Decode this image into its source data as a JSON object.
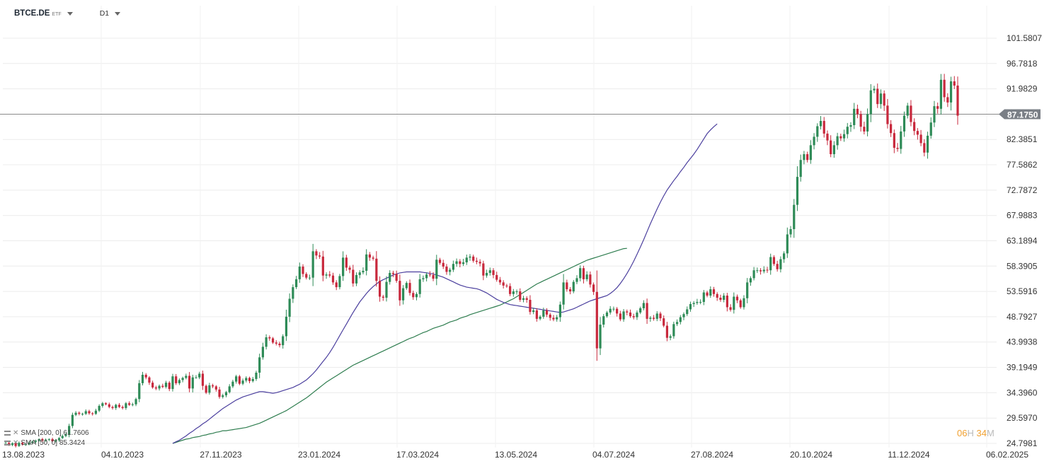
{
  "toolbar": {
    "symbol": "BTCE.DE",
    "instrument_type": "ETF",
    "timeframe": "D1"
  },
  "indicators": [
    {
      "label": "SMA [200, 0] 61.7606",
      "color": "#2e7d4f"
    },
    {
      "label": "SMA [50, 0] 85.3424",
      "color": "#4b3f9e"
    }
  ],
  "countdown": {
    "hours": "06",
    "hours_unit": "H",
    "minutes": "34",
    "minutes_unit": "M"
  },
  "colors": {
    "up": "#2e8b57",
    "down": "#c8283c",
    "sma200": "#2e7d4f",
    "sma50": "#4b3f9e",
    "grid": "#ececec",
    "price_line": "#8a8a8a",
    "price_tag": "#7a7f86"
  },
  "chart_data": {
    "type": "candlestick",
    "y_axis_position": "right",
    "ylim": [
      24.7981,
      101.5807
    ],
    "y_ticks": [
      "101.5807",
      "96.7818",
      "91.9829",
      "87.1750",
      "82.3851",
      "77.5862",
      "72.7872",
      "67.9883",
      "63.1894",
      "58.3905",
      "53.5916",
      "48.7927",
      "43.9938",
      "39.1949",
      "34.3960",
      "29.5970",
      "24.7981"
    ],
    "x_ticks": [
      "13.08.2023",
      "04.10.2023",
      "27.11.2023",
      "23.01.2024",
      "17.03.2024",
      "13.05.2024",
      "04.07.2024",
      "27.08.2024",
      "20.10.2024",
      "11.12.2024",
      "06.02.2025"
    ],
    "current_price": 87.175,
    "current_price_label": "87.1750",
    "closes": [
      24.9,
      24.5,
      24.8,
      24.3,
      24.9,
      24.6,
      24.6,
      24.9,
      25.1,
      25.3,
      25.6,
      25.3,
      25.5,
      25.6,
      25.2,
      25.4,
      25.8,
      26.2,
      26.5,
      28.1,
      30.2,
      30.6,
      30.4,
      30.4,
      30.9,
      30.5,
      30.4,
      31,
      31.9,
      32.4,
      32.2,
      31.7,
      31.5,
      32.1,
      31.7,
      31.5,
      32.4,
      32.1,
      32.2,
      33.2,
      36.2,
      37.8,
      37.3,
      36.3,
      35.4,
      35.2,
      35.7,
      35.5,
      36.3,
      35.1,
      37.5,
      36.2,
      36.8,
      37.2,
      37.6,
      35.2,
      37.3,
      37.3,
      38,
      35.7,
      34.4,
      35.8,
      35.6,
      35,
      33.6,
      33.9,
      34.5,
      35.6,
      36.5,
      37.5,
      36.1,
      36.7,
      37.2,
      36.6,
      37,
      38.2,
      41.1,
      43.1,
      44.9,
      44.7,
      43.9,
      43.7,
      43.4,
      45.1,
      48.8,
      52.2,
      54.4,
      55.9,
      58.3,
      56.9,
      56.2,
      56.2,
      61.2,
      60.4,
      60.2,
      56.6,
      56.8,
      56.6,
      55.3,
      54.4,
      56.5,
      60,
      58.1,
      57.7,
      55.1,
      56.7,
      57.2,
      57.5,
      60.6,
      60,
      59.8,
      55.6,
      52.6,
      52.4,
      55.4,
      57.1,
      56.9,
      55.6,
      51.9,
      54.2,
      55.2,
      53.3,
      52.5,
      53.1,
      55.9,
      56.1,
      56.8,
      56.7,
      56,
      59.6,
      59,
      58.3,
      57.3,
      57.7,
      58.8,
      59.3,
      58.8,
      59.1,
      60,
      60.2,
      59.4,
      59.2,
      58.9,
      56.6,
      57.1,
      57.6,
      56.7,
      55.8,
      55.3,
      54.7,
      54.6,
      53.1,
      53.6,
      53.6,
      52,
      52.3,
      52,
      49.7,
      50,
      48.4,
      48.8,
      50,
      49.2,
      48.6,
      48.3,
      48.7,
      51.1,
      55.3,
      54,
      53.6,
      55.4,
      56.1,
      58,
      55.9,
      56.8,
      54.9,
      53.5,
      42.8,
      47.3,
      48.9,
      49.6,
      50.3,
      50.3,
      49.4,
      48.3,
      49.8,
      49.6,
      48.9,
      48.7,
      49.6,
      50.4,
      51.4,
      48.4,
      48.6,
      48.4,
      49.4,
      48.5,
      47.1,
      44.8,
      45.1,
      47.4,
      47.8,
      48.7,
      49.3,
      50.2,
      51.2,
      51.4,
      51.6,
      51.6,
      53.4,
      52.8,
      54,
      53.1,
      52.4,
      52,
      52.8,
      50.6,
      50.1,
      52.6,
      51.9,
      50.6,
      52.3,
      55.3,
      56.1,
      57.6,
      57.6,
      57.4,
      57.7,
      57.6,
      60.1,
      58.8,
      57.8,
      59.7,
      60.8,
      64.4,
      65.4,
      70,
      75.3,
      78.5,
      79.6,
      78.5,
      81.3,
      82.9,
      84.9,
      85.9,
      83.5,
      82.2,
      79.6,
      81.3,
      83,
      82.6,
      83.4,
      84.8,
      85.1,
      88.2,
      87.2,
      84.8,
      83.9,
      87.2,
      91.7,
      92,
      89.1,
      91.1,
      88.8,
      85.3,
      83.6,
      80.8,
      80.6,
      83.9,
      86.9,
      88.8,
      85.7,
      84,
      83.3,
      81.7,
      79.9,
      83.1,
      85.6,
      88.7,
      88.2,
      93.7,
      90.4,
      89.4,
      93.4,
      92.6,
      86.9
    ],
    "series": [
      {
        "name": "SMA [200, 0]",
        "values": [
          null,
          null,
          null,
          null,
          null,
          null,
          null,
          null,
          null,
          null,
          null,
          null,
          null,
          null,
          null,
          null,
          null,
          null,
          null,
          null,
          null,
          null,
          null,
          null,
          null,
          null,
          null,
          null,
          null,
          null,
          null,
          null,
          null,
          null,
          null,
          null,
          null,
          null,
          null,
          null,
          null,
          null,
          null,
          null,
          null,
          null,
          null,
          null,
          null,
          null,
          24.8,
          25,
          25.2,
          25.4,
          25.6,
          25.7,
          25.9,
          26,
          26.1,
          26.3,
          26.4,
          26.6,
          26.7,
          26.9,
          27,
          27.2,
          27.2,
          27.3,
          27.4,
          27.5,
          27.6,
          27.7,
          27.8,
          28,
          28.2,
          28.4,
          28.6,
          28.9,
          29.2,
          29.5,
          29.8,
          30.1,
          30.4,
          30.7,
          31,
          31.4,
          31.8,
          32.2,
          32.6,
          33,
          33.4,
          33.9,
          34.4,
          34.9,
          35.4,
          35.9,
          36.4,
          36.8,
          37.2,
          37.6,
          38,
          38.4,
          38.8,
          39.2,
          39.6,
          39.9,
          40.2,
          40.5,
          40.8,
          41.1,
          41.4,
          41.7,
          42,
          42.3,
          42.6,
          42.9,
          43.2,
          43.5,
          43.8,
          44.1,
          44.4,
          44.7,
          44.9,
          45.2,
          45.5,
          45.8,
          46,
          46.3,
          46.6,
          46.8,
          47,
          47.2,
          47.5,
          47.8,
          48,
          48.2,
          48.5,
          48.7,
          48.9,
          49.2,
          49.4,
          49.6,
          49.8,
          50,
          50.2,
          50.4,
          50.6,
          50.8,
          51,
          51.3,
          51.6,
          51.9,
          52.2,
          52.6,
          53,
          53.4,
          53.8,
          54.2,
          54.6,
          55,
          55.3,
          55.6,
          55.9,
          56.2,
          56.5,
          56.8,
          57.1,
          57.4,
          57.7,
          58,
          58.3,
          58.6,
          58.9,
          59.2,
          59.5,
          59.7,
          59.9,
          60.1,
          60.3,
          60.5,
          60.7,
          60.9,
          61.1,
          61.3,
          61.5,
          61.7,
          61.76
        ]
      },
      {
        "name": "SMA [50, 0]",
        "values": [
          null,
          null,
          null,
          null,
          null,
          null,
          null,
          null,
          null,
          null,
          null,
          null,
          null,
          null,
          null,
          null,
          null,
          null,
          null,
          null,
          null,
          null,
          null,
          null,
          null,
          null,
          null,
          null,
          null,
          null,
          null,
          null,
          null,
          null,
          null,
          null,
          null,
          null,
          null,
          null,
          null,
          null,
          null,
          null,
          null,
          null,
          null,
          null,
          null,
          null,
          24.8,
          25.1,
          25.4,
          25.8,
          26.2,
          26.7,
          27.1,
          27.6,
          28,
          28.5,
          28.9,
          29.4,
          29.9,
          30.4,
          30.9,
          31.4,
          31.8,
          32.2,
          32.6,
          33,
          33.3,
          33.6,
          33.8,
          34,
          34.2,
          34.4,
          34.6,
          34.6,
          34.5,
          34.4,
          34.3,
          34.4,
          34.6,
          34.8,
          35,
          35.2,
          35.4,
          35.7,
          36,
          36.4,
          36.8,
          37.4,
          38,
          38.7,
          39.5,
          40.3,
          41.1,
          42,
          43,
          44.1,
          45.2,
          46.3,
          47.4,
          48.5,
          49.6,
          50.6,
          51.6,
          52.4,
          53.2,
          53.9,
          54.5,
          55,
          55.5,
          55.8,
          56.1,
          56.4,
          56.7,
          56.9,
          57.1,
          57.2,
          57.3,
          57.3,
          57.3,
          57.3,
          57.3,
          57.2,
          57.1,
          57,
          56.9,
          56.7,
          56.5,
          56.3,
          56,
          55.7,
          55.4,
          55.1,
          54.8,
          54.6,
          54.4,
          54.3,
          54.2,
          54.1,
          53.9,
          53.6,
          53.3,
          52.9,
          52.5,
          52.1,
          51.8,
          51.5,
          51.3,
          51.1,
          51,
          50.9,
          50.8,
          50.7,
          50.6,
          50.5,
          50.4,
          50.3,
          50.2,
          50.1,
          50,
          49.9,
          49.8,
          49.7,
          49.6,
          49.7,
          49.9,
          50.1,
          50.3,
          50.6,
          50.9,
          51.2,
          51.5,
          51.8,
          52,
          52.2,
          52.4,
          52.6,
          52.8,
          53.2,
          53.7,
          54.3,
          55.1,
          56,
          57,
          58.1,
          59.3,
          60.6,
          62,
          63.4,
          64.9,
          66.4,
          67.8,
          69.2,
          70.5,
          71.7,
          72.8,
          73.7,
          74.6,
          75.4,
          76.3,
          77.1,
          78,
          78.8,
          79.6,
          80.5,
          81.5,
          82.5,
          83.5,
          84.2,
          84.8,
          85.34
        ]
      }
    ]
  }
}
